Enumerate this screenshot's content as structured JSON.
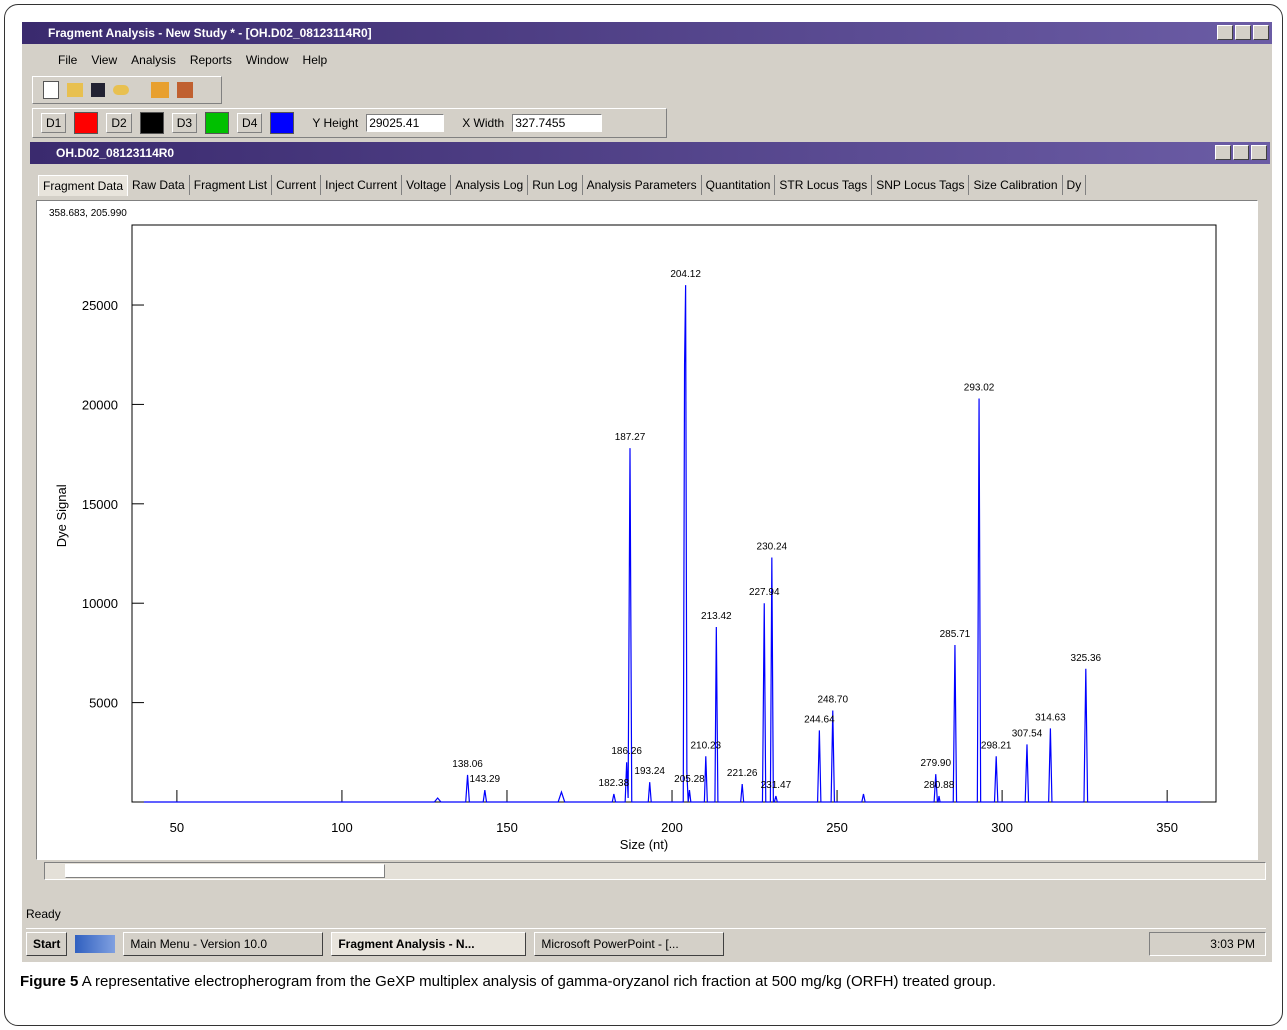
{
  "window": {
    "title": "Fragment Analysis - New Study * - [OH.D02_08123114R0]",
    "menu": [
      "File",
      "View",
      "Analysis",
      "Reports",
      "Window",
      "Help"
    ],
    "detectors": [
      {
        "label": "D1",
        "color": "#ff0000"
      },
      {
        "label": "D2",
        "color": "#000000"
      },
      {
        "label": "D3",
        "color": "#00c000"
      },
      {
        "label": "D4",
        "color": "#0000ff"
      }
    ],
    "y_height_label": "Y Height",
    "y_height": "29025.41",
    "x_width_label": "X Width",
    "x_width": "327.7455"
  },
  "document": {
    "title": "OH.D02_08123114R0",
    "tabs": [
      "Fragment Data",
      "Raw Data",
      "Fragment List",
      "Current",
      "Inject Current",
      "Voltage",
      "Analysis Log",
      "Run Log",
      "Analysis Parameters",
      "Quantitation",
      "STR Locus Tags",
      "SNP Locus Tags",
      "Size Calibration",
      "Dy"
    ]
  },
  "chart_data": {
    "type": "line",
    "readout": "358.683, 205.990",
    "xlabel": "Size (nt)",
    "ylabel": "Dye Signal",
    "xlim": [
      36.4,
      364.8
    ],
    "xticks": [
      50,
      100,
      150,
      200,
      250,
      300,
      350
    ],
    "ylim": [
      0,
      29025.41
    ],
    "yticks": [
      5000,
      10000,
      15000,
      20000,
      25000
    ],
    "x": [
      40,
      128,
      129,
      130,
      137.5,
      138.06,
      138.6,
      142.8,
      143.29,
      143.8,
      165.5,
      166.5,
      167.5,
      181.9,
      182.38,
      182.9,
      185.8,
      186.26,
      186.7,
      187.27,
      187.8,
      192.8,
      193.24,
      193.7,
      203.4,
      203.8,
      204.12,
      204.5,
      204.9,
      205.28,
      205.7,
      209.8,
      210.23,
      210.7,
      213.0,
      213.42,
      213.9,
      220.8,
      221.26,
      221.7,
      227.4,
      227.94,
      228.4,
      229.8,
      230.24,
      230.7,
      231.0,
      231.47,
      231.9,
      244.1,
      244.64,
      245.1,
      248.2,
      248.7,
      249.2,
      257.5,
      258,
      258.5,
      279.4,
      279.9,
      280.4,
      280.6,
      280.88,
      281.2,
      285.2,
      285.71,
      286.2,
      292.5,
      293.02,
      293.5,
      297.7,
      298.21,
      298.7,
      307.0,
      307.54,
      308.0,
      314.1,
      314.63,
      315.1,
      324.8,
      325.36,
      325.9,
      360
    ],
    "series": [
      {
        "color": "#0000ff",
        "values": [
          0,
          0,
          200,
          0,
          0,
          1360,
          0,
          0,
          600,
          0,
          0,
          500,
          0,
          0,
          400,
          0,
          0,
          2000,
          200,
          17800,
          0,
          0,
          1000,
          0,
          0,
          22000,
          26000,
          1500,
          0,
          600,
          0,
          0,
          2300,
          0,
          0,
          8800,
          0,
          0,
          900,
          0,
          0,
          10000,
          0,
          0,
          12300,
          0,
          0,
          300,
          0,
          0,
          3600,
          0,
          0,
          4600,
          0,
          0,
          400,
          0,
          0,
          1400,
          0,
          0,
          300,
          0,
          0,
          7900,
          0,
          0,
          20300,
          0,
          0,
          2300,
          0,
          0,
          2900,
          0,
          0,
          3700,
          0,
          0,
          6700,
          0,
          0
        ]
      }
    ],
    "annotations": [
      {
        "label": "138.06",
        "x": 138.06,
        "y": 1360
      },
      {
        "label": "143.29",
        "x": 143.29,
        "y": 600
      },
      {
        "label": "182.38",
        "x": 182.38,
        "y": 400
      },
      {
        "label": "186.26",
        "x": 186.26,
        "y": 2000
      },
      {
        "label": "187.27",
        "x": 187.27,
        "y": 17800
      },
      {
        "label": "193.24",
        "x": 193.24,
        "y": 1000
      },
      {
        "label": "204.12",
        "x": 204.12,
        "y": 26000
      },
      {
        "label": "205.28",
        "x": 205.28,
        "y": 600
      },
      {
        "label": "210.23",
        "x": 210.23,
        "y": 2300
      },
      {
        "label": "213.42",
        "x": 213.42,
        "y": 8800
      },
      {
        "label": "221.26",
        "x": 221.26,
        "y": 900
      },
      {
        "label": "227.94",
        "x": 227.94,
        "y": 10000
      },
      {
        "label": "230.24",
        "x": 230.24,
        "y": 12300
      },
      {
        "label": "231.47",
        "x": 231.47,
        "y": 300
      },
      {
        "label": "244.64",
        "x": 244.64,
        "y": 3600
      },
      {
        "label": "248.70",
        "x": 248.7,
        "y": 4600
      },
      {
        "label": "279.90",
        "x": 279.9,
        "y": 1400
      },
      {
        "label": "280.88",
        "x": 280.88,
        "y": 300
      },
      {
        "label": "285.71",
        "x": 285.71,
        "y": 7900
      },
      {
        "label": "293.02",
        "x": 293.02,
        "y": 20300
      },
      {
        "label": "298.21",
        "x": 298.21,
        "y": 2300
      },
      {
        "label": "307.54",
        "x": 307.54,
        "y": 2900
      },
      {
        "label": "314.63",
        "x": 314.63,
        "y": 3700
      },
      {
        "label": "325.36",
        "x": 325.36,
        "y": 6700
      }
    ]
  },
  "status": "Ready",
  "taskbar": {
    "start": "Start",
    "items": [
      "Main Menu - Version 10.0",
      "Fragment Analysis - N...",
      "Microsoft PowerPoint - [..."
    ],
    "clock": "3:03 PM"
  },
  "caption": {
    "label": "Figure 5",
    "text": "A representative electropherogram from the GeXP multiplex analysis of gamma-oryzanol rich fraction at 500 mg/kg (ORFH) treated group."
  }
}
